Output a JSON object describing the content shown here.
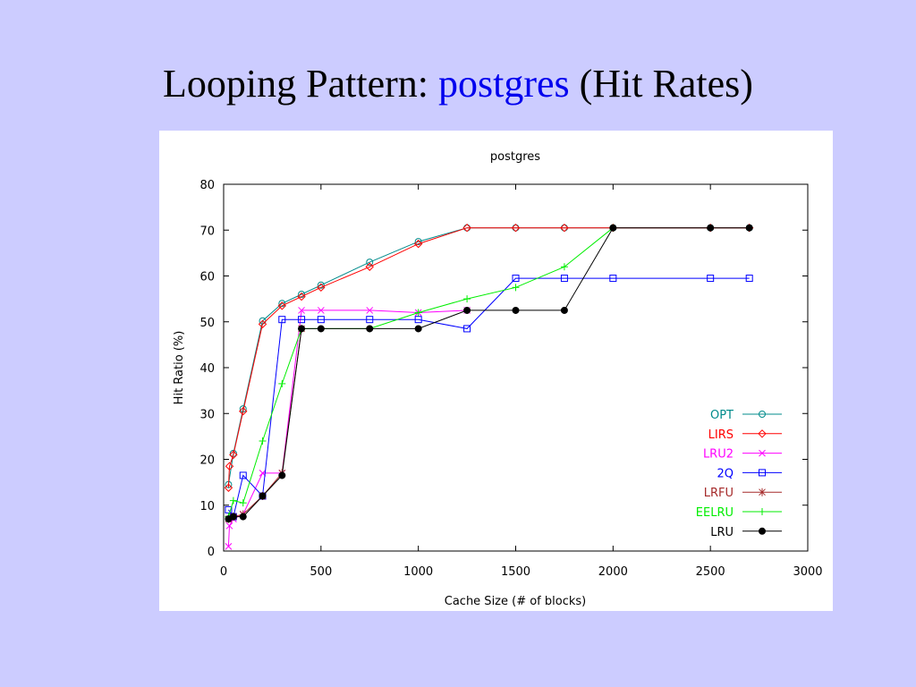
{
  "slide": {
    "title_prefix": "Looping Pattern: ",
    "title_highlight": "postgres",
    "title_suffix": " (Hit Rates)",
    "highlight_color": "#0000ee",
    "background": "#ccccff"
  },
  "chart_data": {
    "type": "line",
    "title": "postgres",
    "xlabel": "Cache Size (# of blocks)",
    "ylabel": "Hit Ratio (%)",
    "xlim": [
      0,
      3000
    ],
    "ylim": [
      0,
      80
    ],
    "xticks": [
      0,
      500,
      1000,
      1500,
      2000,
      2500,
      3000
    ],
    "yticks": [
      0,
      10,
      20,
      30,
      40,
      50,
      60,
      70,
      80
    ],
    "grid": false,
    "legend_position": "bottom-right",
    "series": [
      {
        "name": "OPT",
        "color": "#008b8b",
        "marker": "circle",
        "x": [
          25,
          50,
          100,
          200,
          300,
          400,
          500,
          750,
          1000,
          1250,
          1500,
          1750,
          2000,
          2500,
          2700
        ],
        "y": [
          14.5,
          21.3,
          31.0,
          50.2,
          54.0,
          56.0,
          58.0,
          63.0,
          67.5,
          70.5,
          70.5,
          70.5,
          70.5,
          70.5,
          70.5
        ]
      },
      {
        "name": "LIRS",
        "color": "#ff0000",
        "marker": "diamond",
        "x": [
          25,
          30,
          50,
          100,
          200,
          300,
          400,
          500,
          750,
          1000,
          1250,
          1500,
          1750,
          2000,
          2500,
          2700
        ],
        "y": [
          13.8,
          18.5,
          21.0,
          30.5,
          49.5,
          53.5,
          55.5,
          57.5,
          62.0,
          67.0,
          70.5,
          70.5,
          70.5,
          70.5,
          70.5,
          70.5
        ]
      },
      {
        "name": "LRU2",
        "color": "#ff00ff",
        "marker": "x",
        "x": [
          25,
          30,
          50,
          100,
          200,
          300,
          400,
          500,
          750,
          1000,
          1250
        ],
        "y": [
          1.0,
          5.5,
          7.0,
          8.0,
          17.0,
          17.0,
          52.5,
          52.5,
          52.5,
          52.0,
          52.5
        ]
      },
      {
        "name": "2Q",
        "color": "#0000ff",
        "marker": "square",
        "x": [
          25,
          50,
          100,
          200,
          300,
          400,
          500,
          750,
          1000,
          1250,
          1500,
          1750,
          2000,
          2500,
          2700
        ],
        "y": [
          9.0,
          7.5,
          16.5,
          12.0,
          50.5,
          50.5,
          50.5,
          50.5,
          50.5,
          48.5,
          59.5,
          59.5,
          59.5,
          59.5,
          59.5
        ]
      },
      {
        "name": "LRFU",
        "color": "#a52a2a",
        "marker": "star",
        "x": [
          25,
          50,
          100,
          200,
          300,
          400
        ],
        "y": [
          7.0,
          7.5,
          8.0,
          12.0,
          17.0,
          48.5
        ]
      },
      {
        "name": "EELRU",
        "color": "#00ee00",
        "marker": "plus",
        "x": [
          25,
          50,
          100,
          200,
          300,
          400,
          750,
          1000,
          1250,
          1500,
          1750,
          2000
        ],
        "y": [
          7.5,
          11.0,
          10.5,
          24.0,
          36.5,
          48.5,
          48.5,
          52.0,
          55.0,
          57.5,
          62.0,
          70.5
        ]
      },
      {
        "name": "LRU",
        "color": "#000000",
        "marker": "dot",
        "x": [
          25,
          50,
          100,
          200,
          300,
          400,
          500,
          750,
          1000,
          1250,
          1500,
          1750,
          2000,
          2500,
          2700
        ],
        "y": [
          7.0,
          7.5,
          7.5,
          12.0,
          16.5,
          48.5,
          48.5,
          48.5,
          48.5,
          52.5,
          52.5,
          52.5,
          70.5,
          70.5,
          70.5
        ]
      }
    ]
  }
}
